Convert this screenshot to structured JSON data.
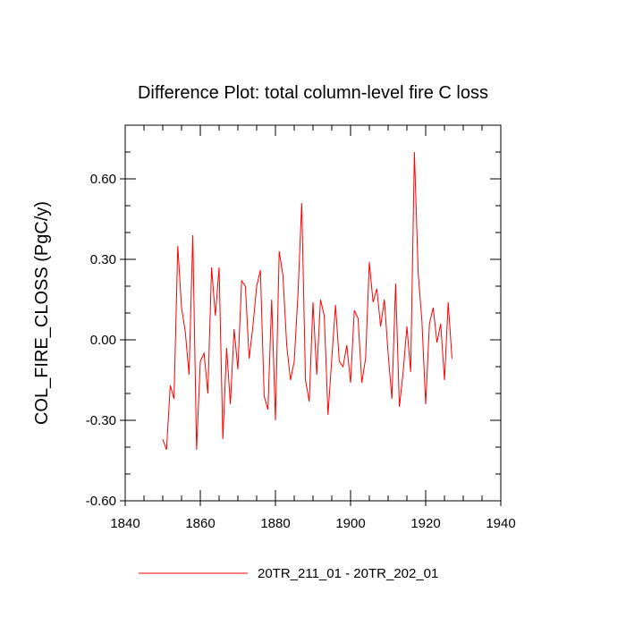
{
  "chart_data": {
    "type": "line",
    "title": "Difference Plot: total column-level fire C loss",
    "xlabel": "",
    "ylabel": "COL_FIRE_CLOSS  (PgC/y)",
    "xlim": [
      1840,
      1940
    ],
    "ylim": [
      -0.6,
      0.8
    ],
    "xticks": [
      1840,
      1860,
      1880,
      1900,
      1920,
      1940
    ],
    "xtick_labels": [
      "1840",
      "1860",
      "1880",
      "1900",
      "1920",
      "1940"
    ],
    "yticks": [
      -0.6,
      -0.3,
      0.0,
      0.3,
      0.6
    ],
    "ytick_labels": [
      "-0.60",
      "-0.30",
      "0.00",
      "0.30",
      "0.60"
    ],
    "legend_position": "bottom",
    "grid": false,
    "series": [
      {
        "name": "20TR_211_01 - 20TR_202_01",
        "color": "#ff0000",
        "x": [
          1850,
          1851,
          1852,
          1853,
          1854,
          1855,
          1856,
          1857,
          1858,
          1859,
          1860,
          1861,
          1862,
          1863,
          1864,
          1865,
          1866,
          1867,
          1868,
          1869,
          1870,
          1871,
          1872,
          1873,
          1874,
          1875,
          1876,
          1877,
          1878,
          1879,
          1880,
          1881,
          1882,
          1883,
          1884,
          1885,
          1886,
          1887,
          1888,
          1889,
          1890,
          1891,
          1892,
          1893,
          1894,
          1895,
          1896,
          1897,
          1898,
          1899,
          1900,
          1901,
          1902,
          1903,
          1904,
          1905,
          1906,
          1907,
          1908,
          1909,
          1910,
          1911,
          1912,
          1913,
          1914,
          1915,
          1916,
          1917,
          1918,
          1919,
          1920,
          1921,
          1922,
          1923,
          1924,
          1925,
          1926,
          1927
        ],
        "y": [
          -0.37,
          -0.41,
          -0.17,
          -0.22,
          0.35,
          0.12,
          0.03,
          -0.13,
          0.39,
          -0.41,
          -0.08,
          -0.05,
          -0.2,
          0.27,
          0.09,
          0.27,
          -0.37,
          -0.03,
          -0.24,
          0.04,
          -0.11,
          0.22,
          0.2,
          -0.07,
          0.05,
          0.2,
          0.26,
          -0.21,
          -0.26,
          0.15,
          -0.3,
          0.33,
          0.24,
          -0.02,
          -0.15,
          -0.08,
          0.17,
          0.51,
          -0.15,
          -0.23,
          0.14,
          -0.13,
          0.15,
          0.09,
          -0.28,
          -0.07,
          0.13,
          -0.08,
          -0.1,
          -0.02,
          -0.16,
          0.11,
          0.08,
          -0.16,
          -0.07,
          0.29,
          0.14,
          0.19,
          0.05,
          0.15,
          -0.05,
          -0.22,
          0.21,
          -0.25,
          -0.12,
          0.05,
          -0.12,
          0.7,
          0.25,
          0.07,
          -0.24,
          0.06,
          0.12,
          -0.01,
          0.06,
          -0.15,
          0.14,
          -0.07
        ]
      }
    ]
  }
}
